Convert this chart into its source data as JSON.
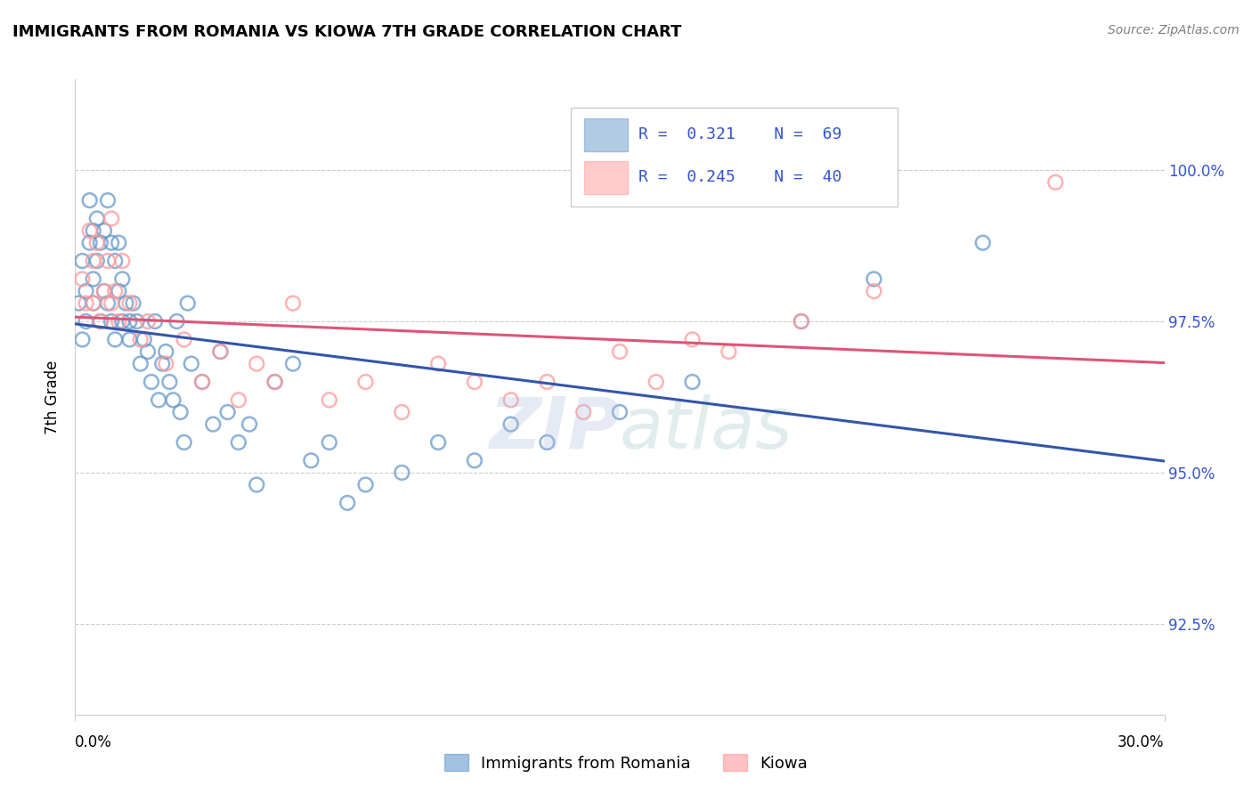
{
  "title": "IMMIGRANTS FROM ROMANIA VS KIOWA 7TH GRADE CORRELATION CHART",
  "source": "Source: ZipAtlas.com",
  "ylabel": "7th Grade",
  "ytick_values": [
    92.5,
    95.0,
    97.5,
    100.0
  ],
  "xlim": [
    0.0,
    30.0
  ],
  "ylim": [
    91.0,
    101.5
  ],
  "legend_label_blue": "Immigrants from Romania",
  "legend_label_pink": "Kiowa",
  "blue_color": "#6699CC",
  "pink_color": "#FF9999",
  "blue_line_color": "#3355AA",
  "pink_line_color": "#DD5577",
  "blue_x": [
    0.1,
    0.2,
    0.2,
    0.3,
    0.3,
    0.4,
    0.4,
    0.5,
    0.5,
    0.5,
    0.6,
    0.6,
    0.7,
    0.7,
    0.8,
    0.8,
    0.9,
    0.9,
    1.0,
    1.0,
    1.1,
    1.1,
    1.2,
    1.2,
    1.3,
    1.3,
    1.4,
    1.5,
    1.5,
    1.6,
    1.7,
    1.8,
    1.9,
    2.0,
    2.1,
    2.2,
    2.3,
    2.4,
    2.5,
    2.6,
    2.7,
    2.8,
    2.9,
    3.0,
    3.1,
    3.2,
    3.5,
    3.8,
    4.0,
    4.2,
    4.5,
    4.8,
    5.0,
    5.5,
    6.0,
    6.5,
    7.0,
    7.5,
    8.0,
    9.0,
    10.0,
    11.0,
    12.0,
    13.0,
    15.0,
    17.0,
    20.0,
    22.0,
    25.0
  ],
  "blue_y": [
    97.8,
    98.5,
    97.2,
    98.0,
    97.5,
    99.5,
    98.8,
    99.0,
    97.8,
    98.2,
    99.2,
    98.5,
    98.8,
    97.5,
    99.0,
    98.0,
    99.5,
    97.8,
    97.5,
    98.8,
    98.5,
    97.2,
    98.8,
    98.0,
    98.2,
    97.5,
    97.8,
    97.2,
    97.5,
    97.8,
    97.5,
    96.8,
    97.2,
    97.0,
    96.5,
    97.5,
    96.2,
    96.8,
    97.0,
    96.5,
    96.2,
    97.5,
    96.0,
    95.5,
    97.8,
    96.8,
    96.5,
    95.8,
    97.0,
    96.0,
    95.5,
    95.8,
    94.8,
    96.5,
    96.8,
    95.2,
    95.5,
    94.5,
    94.8,
    95.0,
    95.5,
    95.2,
    95.8,
    95.5,
    96.0,
    96.5,
    97.5,
    98.2,
    98.8
  ],
  "pink_x": [
    0.2,
    0.3,
    0.4,
    0.5,
    0.5,
    0.6,
    0.7,
    0.8,
    0.9,
    1.0,
    1.0,
    1.1,
    1.2,
    1.3,
    1.5,
    1.8,
    2.0,
    2.5,
    3.0,
    3.5,
    4.0,
    4.5,
    5.0,
    5.5,
    6.0,
    7.0,
    8.0,
    9.0,
    10.0,
    11.0,
    12.0,
    13.0,
    14.0,
    15.0,
    16.0,
    17.0,
    18.0,
    20.0,
    22.0,
    27.0
  ],
  "pink_y": [
    98.2,
    97.8,
    99.0,
    98.5,
    97.8,
    98.8,
    97.5,
    98.0,
    98.5,
    97.8,
    99.2,
    98.0,
    97.5,
    98.5,
    97.8,
    97.2,
    97.5,
    96.8,
    97.2,
    96.5,
    97.0,
    96.2,
    96.8,
    96.5,
    97.8,
    96.2,
    96.5,
    96.0,
    96.8,
    96.5,
    96.2,
    96.5,
    96.0,
    97.0,
    96.5,
    97.2,
    97.0,
    97.5,
    98.0,
    99.8
  ]
}
